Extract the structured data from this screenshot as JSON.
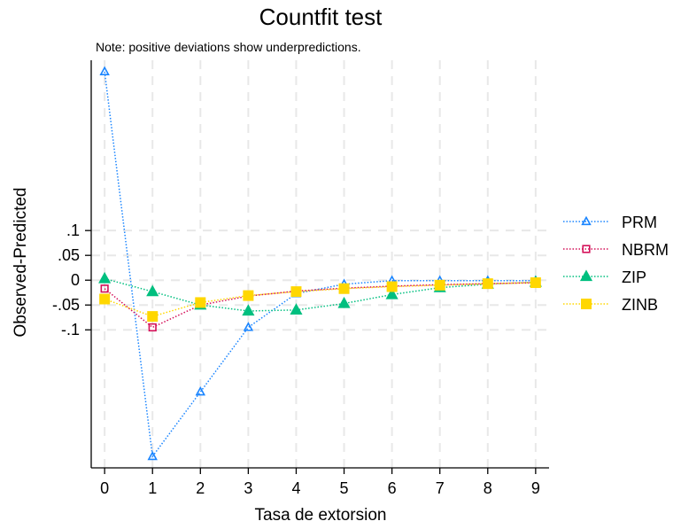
{
  "chart_data": {
    "type": "line",
    "title": "Countfit test",
    "note": "Note: positive deviations show underpredictions.",
    "xlabel": "Tasa de extorsion",
    "ylabel": "Observed-Predicted",
    "x": [
      0,
      1,
      2,
      3,
      4,
      5,
      6,
      7,
      8,
      9
    ],
    "x_ticks": [
      "0",
      "1",
      "2",
      "3",
      "4",
      "5",
      "6",
      "7",
      "8",
      "9"
    ],
    "y_ticks": [
      {
        "value": 0.1,
        "label": ".1"
      },
      {
        "value": 0.05,
        "label": ".05"
      },
      {
        "value": 0,
        "label": "0"
      },
      {
        "value": -0.05,
        "label": "-.05"
      },
      {
        "value": -0.1,
        "label": "-.1"
      }
    ],
    "xlim": [
      -0.28,
      9.28
    ],
    "ylim": [
      -0.378,
      0.443
    ],
    "grid": true,
    "legend_position": "right",
    "series": [
      {
        "name": "PRM",
        "color": "#1a85ff",
        "marker": "triangle-open",
        "values": [
          0.42,
          -0.355,
          -0.225,
          -0.095,
          -0.027,
          -0.008,
          -0.001,
          -0.001,
          -0.001,
          -0.001
        ]
      },
      {
        "name": "NBRM",
        "color": "#d41159",
        "marker": "square-open",
        "values": [
          -0.017,
          -0.095,
          -0.05,
          -0.032,
          -0.022,
          -0.016,
          -0.012,
          -0.009,
          -0.007,
          -0.005
        ]
      },
      {
        "name": "ZIP",
        "color": "#00bf7f",
        "marker": "triangle-filled",
        "values": [
          0.003,
          -0.023,
          -0.05,
          -0.062,
          -0.06,
          -0.047,
          -0.029,
          -0.015,
          -0.008,
          -0.004
        ]
      },
      {
        "name": "ZINB",
        "color": "#ffd700",
        "marker": "square-filled",
        "values": [
          -0.038,
          -0.073,
          -0.045,
          -0.031,
          -0.023,
          -0.017,
          -0.013,
          -0.01,
          -0.007,
          -0.005
        ]
      }
    ]
  }
}
